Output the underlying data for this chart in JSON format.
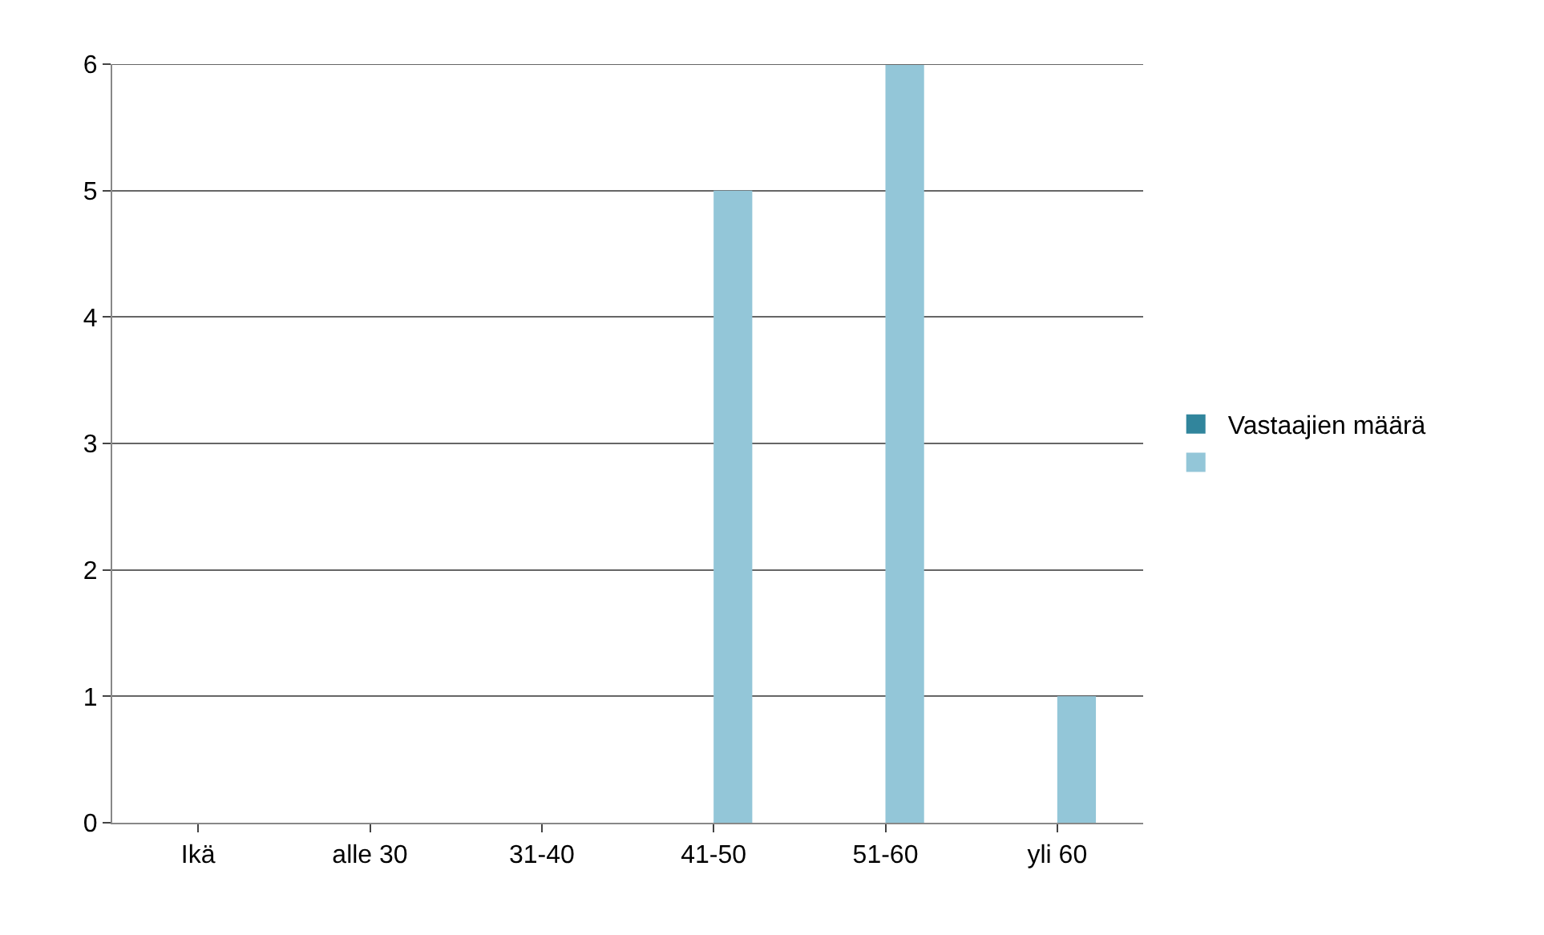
{
  "chart_data": {
    "type": "bar",
    "categories": [
      "Ikä",
      "alle 30",
      "31-40",
      "41-50",
      "51-60",
      "yli 60"
    ],
    "series": [
      {
        "name": "Vastaajien määrä",
        "color": "#31859c",
        "values": [
          null,
          null,
          null,
          null,
          null,
          null
        ]
      },
      {
        "color": "#93c6d8",
        "values": [
          null,
          0,
          0,
          5,
          6,
          1
        ]
      }
    ],
    "ylim": [
      0,
      6
    ],
    "yticks": [
      0,
      1,
      2,
      3,
      4,
      5,
      6
    ],
    "grid": "y",
    "legend": "right"
  }
}
